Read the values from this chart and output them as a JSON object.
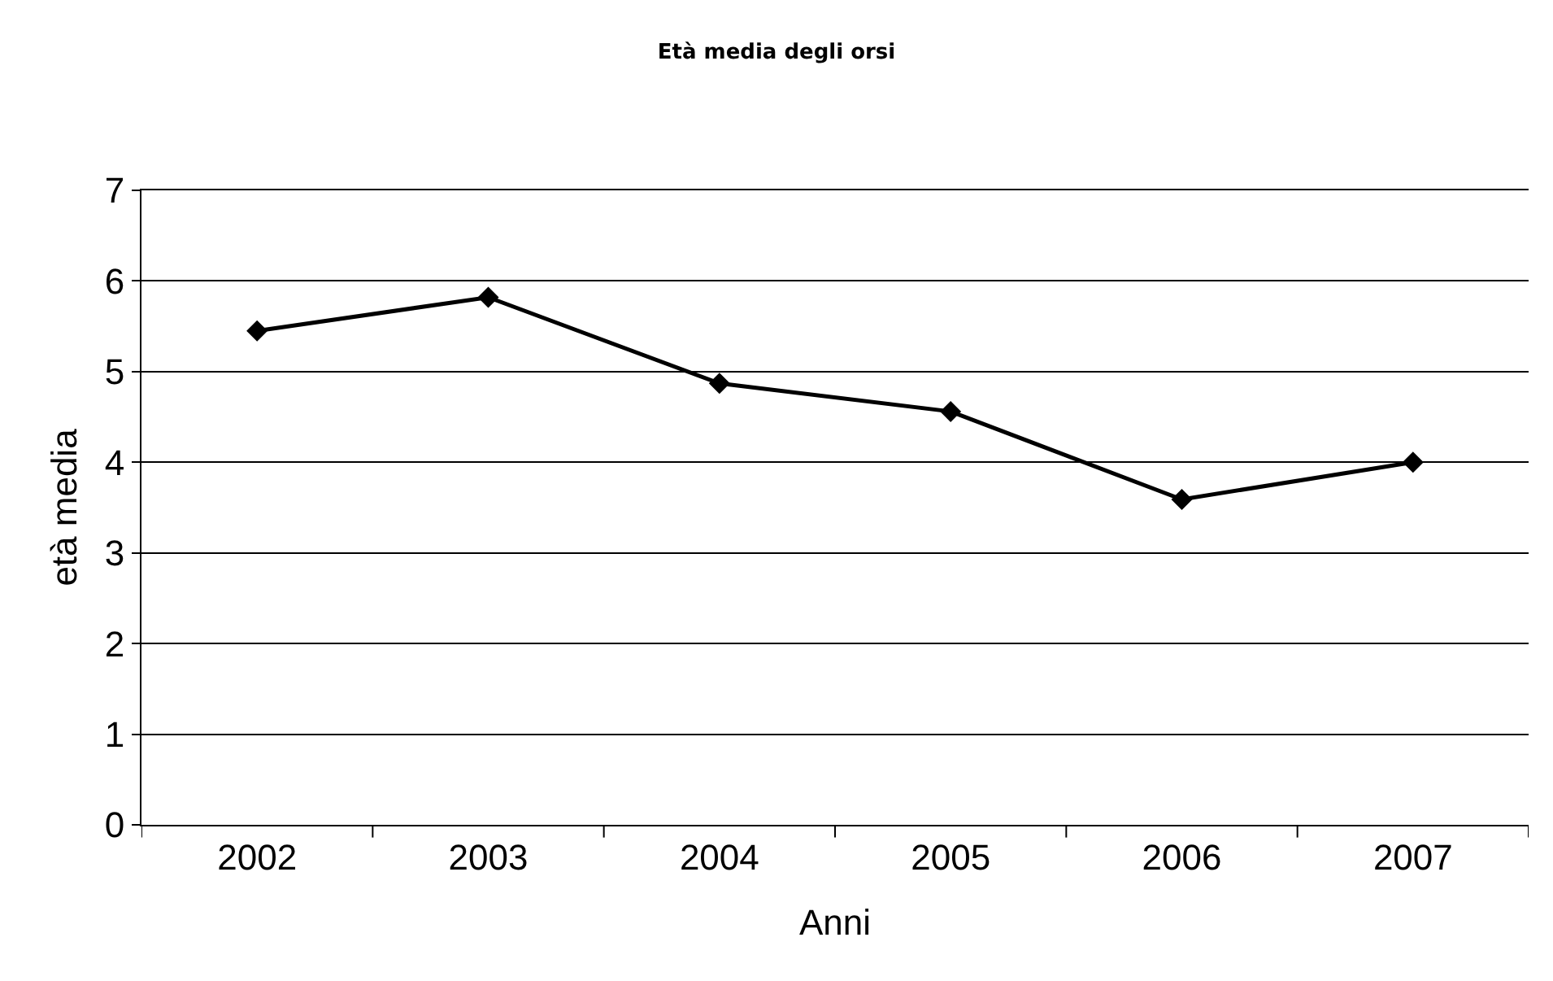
{
  "chart_data": {
    "type": "line",
    "title": "Età media degli orsi",
    "xlabel": "Anni",
    "ylabel": "età media",
    "categories": [
      "2002",
      "2003",
      "2004",
      "2005",
      "2006",
      "2007"
    ],
    "series": [
      {
        "color": "#000000",
        "values": [
          5.45,
          5.82,
          4.87,
          4.56,
          3.59,
          4.0
        ]
      }
    ],
    "ylim": [
      0,
      7
    ],
    "yticks": [
      0,
      1,
      2,
      3,
      4,
      5,
      6,
      7
    ],
    "grid": "y",
    "marker": "diamond",
    "line_style": "solid"
  }
}
